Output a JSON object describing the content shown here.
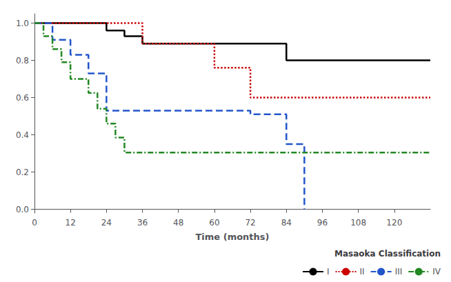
{
  "chart_data": {
    "type": "line",
    "xlabel": "Time (months)",
    "xlim": [
      0,
      132
    ],
    "ylim": [
      -0.02,
      1.05
    ],
    "xticks": [
      0,
      12,
      24,
      36,
      48,
      60,
      72,
      84,
      96,
      108,
      120
    ],
    "yticks": [
      {
        "value": 0,
        "label": "0.0"
      },
      0.2,
      0.4,
      0.6,
      0.8,
      {
        "value": 1,
        "label": "1.0"
      }
    ],
    "grid": false,
    "legend": "lower right",
    "legend_title": "Masaoka Classification",
    "series": [
      {
        "name": "I",
        "color": "#000000",
        "line_style": "solid",
        "x": [
          0,
          24,
          24,
          30,
          30,
          36,
          36,
          84,
          84,
          132
        ],
        "values": [
          1.0,
          1.0,
          0.96,
          0.96,
          0.93,
          0.93,
          0.89,
          0.89,
          0.8,
          0.8
        ]
      },
      {
        "name": "II",
        "color": "#cc0000",
        "line_style": "dotted",
        "x": [
          0,
          36,
          36,
          60,
          60,
          72,
          72,
          132
        ],
        "values": [
          1.0,
          1.0,
          0.89,
          0.89,
          0.76,
          0.76,
          0.6,
          0.6
        ]
      },
      {
        "name": "III",
        "color": "#2255cc",
        "line_style": "dashed",
        "x": [
          0,
          6,
          6,
          12,
          12,
          18,
          18,
          24,
          24,
          72,
          72,
          84,
          84,
          90,
          90
        ],
        "values": [
          1.0,
          1.0,
          0.91,
          0.91,
          0.83,
          0.83,
          0.73,
          0.73,
          0.53,
          0.53,
          0.51,
          0.51,
          0.35,
          0.35,
          0.0
        ]
      },
      {
        "name": "IV",
        "color": "#228822",
        "line_style": "dashdot",
        "x": [
          0,
          3,
          3,
          6,
          6,
          9,
          9,
          12,
          12,
          18,
          18,
          21,
          21,
          24,
          24,
          27,
          27,
          30,
          30,
          84,
          84,
          132
        ],
        "values": [
          1.0,
          1.0,
          0.93,
          0.93,
          0.86,
          0.86,
          0.79,
          0.79,
          0.7,
          0.7,
          0.625,
          0.625,
          0.54,
          0.54,
          0.46,
          0.46,
          0.385,
          0.385,
          0.305,
          0.305,
          0.305,
          0.305
        ]
      }
    ]
  }
}
